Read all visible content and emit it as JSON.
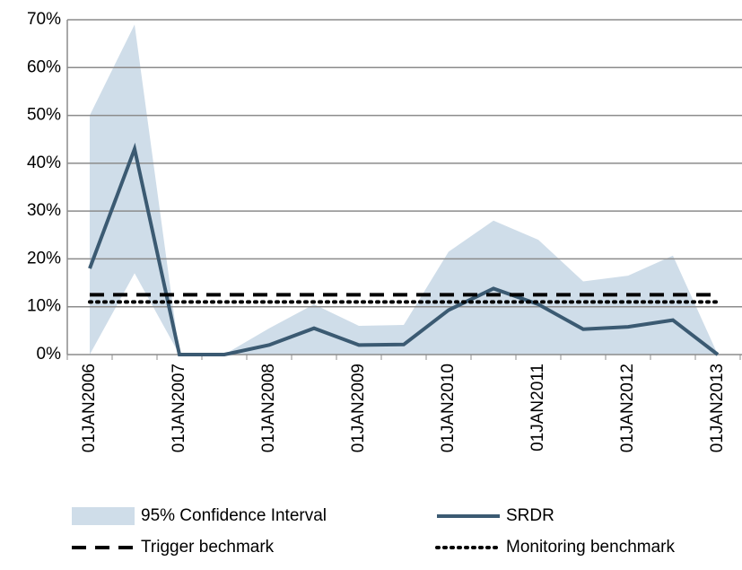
{
  "chart_data": {
    "type": "line",
    "categories": [
      "01JAN2006",
      null,
      "01JAN2007",
      null,
      "01JAN2008",
      null,
      "01JAN2009",
      null,
      "01JAN2010",
      null,
      "01JAN2011",
      null,
      "01JAN2012",
      null,
      "01JAN2013"
    ],
    "series": [
      {
        "name": "95% Confidence Interval",
        "kind": "band",
        "color": "#cfdde9",
        "upper": [
          50,
          69,
          0,
          0,
          5.5,
          10.5,
          6,
          6.2,
          21.5,
          28,
          24,
          15.3,
          16.5,
          20.7,
          0
        ],
        "lower": [
          0,
          17,
          0,
          0,
          0,
          0,
          0,
          0,
          0,
          0,
          0,
          0,
          0,
          0,
          0
        ]
      },
      {
        "name": "SRDR",
        "kind": "solid",
        "color": "#3b5a72",
        "values": [
          18,
          43,
          0,
          0,
          2,
          5.5,
          2,
          2.1,
          9.3,
          13.8,
          10.5,
          5.3,
          5.8,
          7.2,
          0
        ]
      },
      {
        "name": "Trigger bechmark",
        "kind": "dashed",
        "color": "#000000",
        "values": [
          12.5,
          12.5,
          12.5,
          12.5,
          12.5,
          12.5,
          12.5,
          12.5,
          12.5,
          12.5,
          12.5,
          12.5,
          12.5,
          12.5,
          12.5
        ]
      },
      {
        "name": "Monitoring benchmark",
        "kind": "dotted",
        "color": "#000000",
        "values": [
          11,
          11,
          11,
          11,
          11,
          11,
          11,
          11,
          11,
          11,
          11,
          11,
          11,
          11,
          11
        ]
      }
    ],
    "ylim": [
      0,
      70
    ],
    "yticks": [
      {
        "value": 0,
        "label": "0%"
      },
      {
        "value": 10,
        "label": "10%"
      },
      {
        "value": 20,
        "label": "20%"
      },
      {
        "value": 30,
        "label": "30%"
      },
      {
        "value": 40,
        "label": "40%"
      },
      {
        "value": 50,
        "label": "50%"
      },
      {
        "value": 60,
        "label": "60%"
      },
      {
        "value": 70,
        "label": "70%"
      }
    ],
    "grid": true
  }
}
